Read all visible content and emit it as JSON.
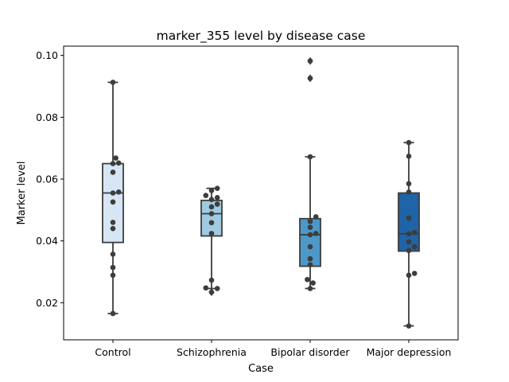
{
  "chart_data": {
    "type": "box",
    "title": "marker_355 level by disease case",
    "xlabel": "Case",
    "ylabel": "Marker level",
    "ylim": [
      0.008,
      0.103
    ],
    "yticks": [
      "0.02",
      "0.04",
      "0.06",
      "0.08",
      "0.10"
    ],
    "yticks_values": [
      0.02,
      0.04,
      0.06,
      0.08,
      0.1
    ],
    "categories": [
      "Control",
      "Schizophrenia",
      "Bipolar disorder",
      "Major depression"
    ],
    "colors": [
      "#d6e6f4",
      "#9fcae1",
      "#4b98c9",
      "#1f63a8"
    ],
    "point_color": "#3d3d3d",
    "line_color": "#3d3d3d",
    "series": [
      {
        "category": "Control",
        "q1": 0.0395,
        "median": 0.0555,
        "q3": 0.065,
        "whisker_low": 0.0165,
        "whisker_high": 0.0913,
        "outliers": [],
        "points": [
          0.0913,
          0.0668,
          0.0652,
          0.065,
          0.0622,
          0.0558,
          0.0555,
          0.0526,
          0.046,
          0.044,
          0.0357,
          0.0314,
          0.0289,
          0.0165
        ]
      },
      {
        "category": "Schizophrenia",
        "q1": 0.0416,
        "median": 0.0488,
        "q3": 0.0531,
        "whisker_low": 0.0246,
        "whisker_high": 0.057,
        "outliers": [
          0.0234
        ],
        "points": [
          0.057,
          0.0563,
          0.0547,
          0.054,
          0.0534,
          0.0519,
          0.051,
          0.0488,
          0.0459,
          0.0424,
          0.0273,
          0.0248,
          0.0246,
          0.0234
        ]
      },
      {
        "category": "Bipolar disorder",
        "q1": 0.0318,
        "median": 0.042,
        "q3": 0.0472,
        "whisker_low": 0.0246,
        "whisker_high": 0.0672,
        "outliers": [
          0.0982,
          0.0926
        ],
        "points": [
          0.0982,
          0.0926,
          0.0672,
          0.0478,
          0.0463,
          0.0444,
          0.0424,
          0.042,
          0.0381,
          0.0342,
          0.0323,
          0.0275,
          0.0264,
          0.0246
        ]
      },
      {
        "category": "Major depression",
        "q1": 0.0367,
        "median": 0.0423,
        "q3": 0.0555,
        "whisker_low": 0.0125,
        "whisker_high": 0.0718,
        "outliers": [],
        "points": [
          0.0718,
          0.0674,
          0.0585,
          0.0558,
          0.0474,
          0.0427,
          0.0423,
          0.0397,
          0.0381,
          0.0369,
          0.0295,
          0.0289,
          0.0125
        ]
      }
    ]
  }
}
